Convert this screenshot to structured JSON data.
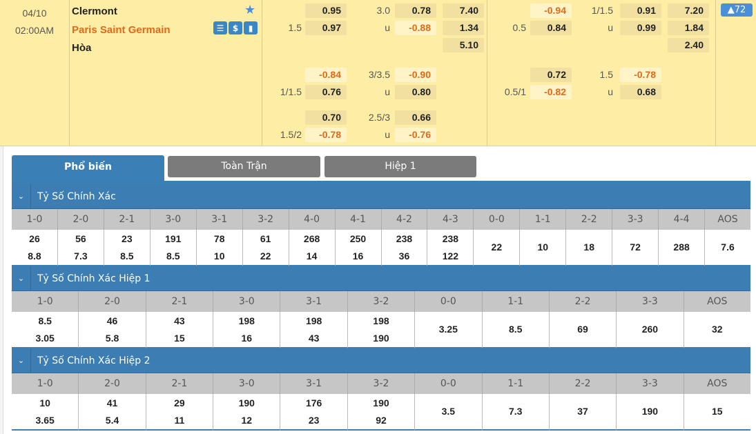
{
  "match": {
    "date": "04/10",
    "time": "02:00AM",
    "home": "Clermont",
    "away": "Paris Saint Germain",
    "draw": "Hòa",
    "icons": [
      "star-icon",
      "scoreboard-icon",
      "dollar-icon",
      "stats-icon"
    ],
    "badge": "▲72"
  },
  "colors": {
    "accent": "#3a7fb5",
    "negative": "#e06a1a",
    "background": "#fdeda5"
  },
  "odds": {
    "full": [
      [
        {
          "hdp": "",
          "v": "0.95",
          "ou": "3.0",
          "ouv": "0.78",
          "x12": "7.40"
        },
        {
          "hdp": "1.5",
          "v": "0.97",
          "ou": "u",
          "ouv": "-0.88",
          "x12": "1.34"
        },
        {
          "x12": "5.10"
        }
      ],
      [
        {
          "hdp": "",
          "v": "-0.84",
          "ou": "3/3.5",
          "ouv": "-0.90"
        },
        {
          "hdp": "1/1.5",
          "v": "0.76",
          "ou": "u",
          "ouv": "0.80"
        }
      ],
      [
        {
          "hdp": "",
          "v": "0.70",
          "ou": "2.5/3",
          "ouv": "0.66"
        },
        {
          "hdp": "1.5/2",
          "v": "-0.78",
          "ou": "u",
          "ouv": "-0.76"
        }
      ]
    ],
    "half": [
      [
        {
          "hdp": "",
          "v": "-0.94",
          "ou": "1/1.5",
          "ouv": "0.91",
          "x12": "7.20"
        },
        {
          "hdp": "0.5",
          "v": "0.84",
          "ou": "u",
          "ouv": "0.99",
          "x12": "1.84"
        },
        {
          "x12": "2.40"
        }
      ],
      [
        {
          "hdp": "",
          "v": "0.72",
          "ou": "1.5",
          "ouv": "-0.78"
        },
        {
          "hdp": "0.5/1",
          "v": "-0.82",
          "ou": "u",
          "ouv": "0.68"
        }
      ]
    ]
  },
  "tabs": [
    {
      "label": "Phổ biến",
      "active": true
    },
    {
      "label": "Toàn Trận",
      "active": false
    },
    {
      "label": "Hiệp 1",
      "active": false
    }
  ],
  "sections": [
    {
      "title": "Tỷ Số Chính Xác",
      "headers": [
        "1-0",
        "2-0",
        "2-1",
        "3-0",
        "3-1",
        "3-2",
        "4-0",
        "4-1",
        "4-2",
        "4-3",
        "0-0",
        "1-1",
        "2-2",
        "3-3",
        "4-4",
        "AOS"
      ],
      "values": [
        [
          "26",
          "8.8"
        ],
        [
          "56",
          "7.3"
        ],
        [
          "23",
          "8.5"
        ],
        [
          "191",
          "8.5"
        ],
        [
          "78",
          "10"
        ],
        [
          "61",
          "22"
        ],
        [
          "268",
          "14"
        ],
        [
          "250",
          "16"
        ],
        [
          "238",
          "36"
        ],
        [
          "238",
          "122"
        ],
        [
          "22"
        ],
        [
          "10"
        ],
        [
          "18"
        ],
        [
          "72"
        ],
        [
          "288"
        ],
        [
          "7.6"
        ]
      ]
    },
    {
      "title": "Tỷ Số Chính Xác Hiệp 1",
      "headers": [
        "1-0",
        "2-0",
        "2-1",
        "3-0",
        "3-1",
        "3-2",
        "0-0",
        "1-1",
        "2-2",
        "3-3",
        "AOS"
      ],
      "values": [
        [
          "8.5",
          "3.05"
        ],
        [
          "46",
          "5.8"
        ],
        [
          "43",
          "15"
        ],
        [
          "198",
          "16"
        ],
        [
          "198",
          "43"
        ],
        [
          "198",
          "190"
        ],
        [
          "3.25"
        ],
        [
          "8.5"
        ],
        [
          "69"
        ],
        [
          "260"
        ],
        [
          "32"
        ]
      ]
    },
    {
      "title": "Tỷ Số Chính Xác Hiệp 2",
      "headers": [
        "1-0",
        "2-0",
        "2-1",
        "3-0",
        "3-1",
        "3-2",
        "0-0",
        "1-1",
        "2-2",
        "3-3",
        "AOS"
      ],
      "values": [
        [
          "10",
          "3.65"
        ],
        [
          "41",
          "5.4"
        ],
        [
          "29",
          "11"
        ],
        [
          "190",
          "12"
        ],
        [
          "176",
          "23"
        ],
        [
          "190",
          "92"
        ],
        [
          "3.5"
        ],
        [
          "7.3"
        ],
        [
          "37"
        ],
        [
          "190"
        ],
        [
          "15"
        ]
      ]
    }
  ]
}
